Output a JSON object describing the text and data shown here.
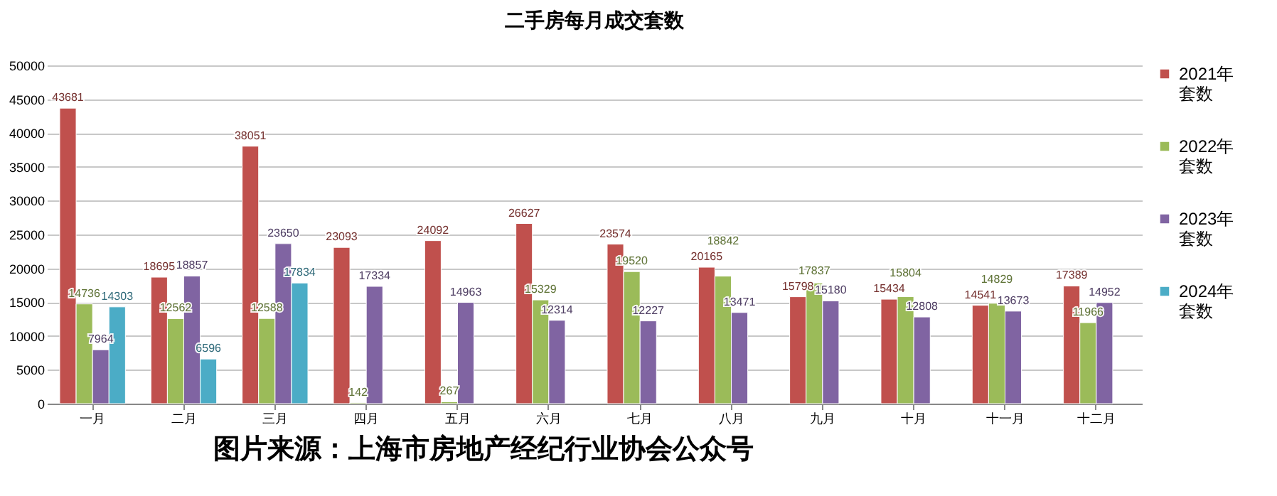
{
  "chart_data": {
    "type": "bar",
    "title": "二手房每月成交套数",
    "categories": [
      "一月",
      "二月",
      "三月",
      "四月",
      "五月",
      "六月",
      "七月",
      "八月",
      "九月",
      "十月",
      "十一月",
      "十二月"
    ],
    "series": [
      {
        "name": "2021年套数",
        "color": "#c0504d",
        "values": [
          43681,
          18695,
          38051,
          23093,
          24092,
          26627,
          23574,
          20165,
          15798,
          15434,
          14541,
          17389
        ]
      },
      {
        "name": "2022年套数",
        "color": "#9bbb59",
        "values": [
          14736,
          12562,
          12588,
          142,
          267,
          15329,
          19520,
          18842,
          17837,
          15804,
          14829,
          11966
        ]
      },
      {
        "name": "2023年套数",
        "color": "#8064a2",
        "values": [
          7964,
          18857,
          23650,
          17334,
          14963,
          12314,
          12227,
          13471,
          15180,
          12808,
          13673,
          14952
        ]
      },
      {
        "name": "2024年套数",
        "color": "#4bacc6",
        "values": [
          14303,
          6596,
          17834,
          null,
          null,
          null,
          null,
          null,
          null,
          null,
          null,
          null
        ]
      }
    ],
    "ylim": [
      0,
      50000
    ],
    "yticks": [
      0,
      5000,
      10000,
      15000,
      20000,
      25000,
      30000,
      35000,
      40000,
      45000,
      50000
    ],
    "grid": "y",
    "legend": "right",
    "data_labels": true,
    "annotations": [
      "图片来源：上海市房地产经纪行业协会公众号"
    ]
  }
}
